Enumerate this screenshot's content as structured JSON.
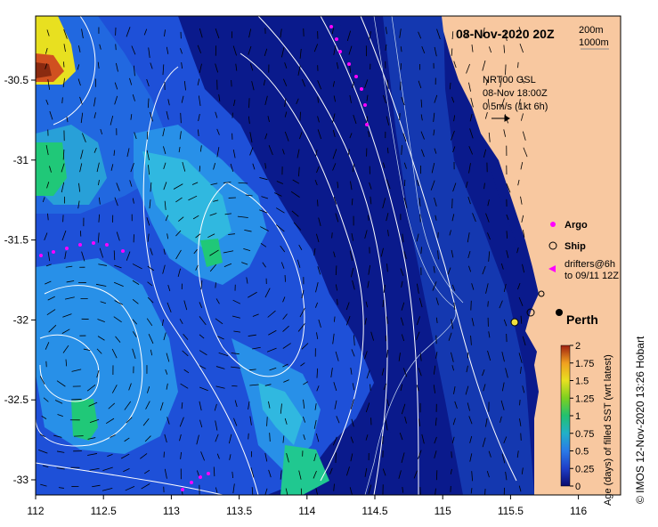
{
  "header": {
    "date": "08-Nov-2020 20Z",
    "depth_contours": [
      "200m",
      "1000m"
    ]
  },
  "current_info": {
    "source": "NRT00 GSL",
    "datetime": "08-Nov 18:00Z",
    "scale": "0.5m/s (1kt 6h)"
  },
  "legend": {
    "argo": "Argo",
    "ship": "Ship",
    "drifters_line1": "drifters@6h",
    "drifters_line2": "to 09/11 12Z"
  },
  "city": "Perth",
  "colorbar": {
    "title": "Age (days) of filled SST (wrt latest)",
    "ticks": [
      "0",
      "0.25",
      "0.5",
      "0.75",
      "1",
      "1.25",
      "1.5",
      "1.75",
      "2"
    ],
    "colors": [
      "#0a0a6e",
      "#1e3ec8",
      "#2a7ae8",
      "#22b0c8",
      "#22c070",
      "#7cd020",
      "#e8e020",
      "#f0a020",
      "#a02010"
    ]
  },
  "axes": {
    "x_ticks": [
      "112",
      "112.5",
      "113",
      "113.5",
      "114",
      "114.5",
      "115",
      "115.5",
      "116"
    ],
    "y_ticks": [
      "-30.5",
      "-31",
      "-31.5",
      "-32",
      "-32.5",
      "-33"
    ]
  },
  "credit": "IMOS 12-Nov-2020 13:26 Hobart",
  "colors": {
    "land": "#f8c8a0",
    "deep_blue": "#0a1a8c",
    "mid_blue": "#1e50d8",
    "light_blue": "#2890e8",
    "cyan": "#30b8e0",
    "green": "#20c878",
    "argo_marker": "#ff00ff"
  }
}
